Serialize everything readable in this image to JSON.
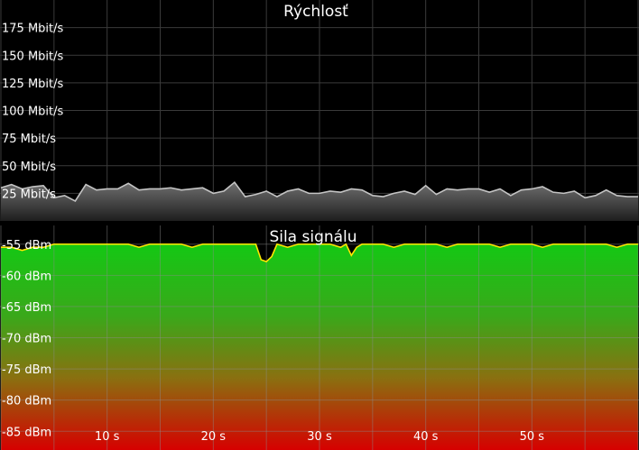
{
  "chart_data": [
    {
      "type": "area",
      "title": "Rýchlosť",
      "xlabel": "",
      "ylabel": "",
      "y_unit": "Mbit/s",
      "ylim": [
        0,
        200
      ],
      "y_ticks": [
        25,
        50,
        75,
        100,
        125,
        150,
        175
      ],
      "y_tick_labels": [
        "25 Mbit/s",
        "50 Mbit/s",
        "75 Mbit/s",
        "100 Mbit/s",
        "125 Mbit/s",
        "150 Mbit/s",
        "175 Mbit/s"
      ],
      "grid": true,
      "colors": {
        "background": "#000000",
        "grid": "#3a3a3a",
        "line": "#b8b8b8",
        "fill_top": "#6a6a6a",
        "fill_bottom": "#1a1a1a"
      },
      "series": [
        {
          "x": [
            0,
            1,
            2,
            3,
            4,
            5,
            6,
            7,
            8,
            9,
            10,
            11,
            12,
            13,
            14,
            15,
            16,
            17,
            18,
            19,
            20,
            21,
            22,
            23,
            24,
            25,
            26,
            27,
            28,
            29,
            30,
            31,
            32,
            33,
            34,
            35,
            36,
            37,
            38,
            39,
            40,
            41,
            42,
            43,
            44,
            45,
            46,
            47,
            48,
            49,
            50,
            51,
            52,
            53,
            54,
            55,
            56,
            57,
            58,
            59,
            60
          ],
          "values": [
            30,
            33,
            29,
            31,
            32,
            21,
            23,
            18,
            33,
            28,
            29,
            29,
            34,
            28,
            29,
            29,
            30,
            28,
            29,
            30,
            25,
            27,
            35,
            22,
            24,
            27,
            22,
            27,
            29,
            25,
            25,
            27,
            26,
            29,
            28,
            23,
            22,
            25,
            27,
            24,
            32,
            24,
            29,
            28,
            29,
            29,
            26,
            29,
            23,
            28,
            29,
            31,
            26,
            25,
            27,
            21,
            23,
            28,
            23,
            22,
            22
          ]
        }
      ]
    },
    {
      "type": "area",
      "title": "Sila signálu",
      "xlabel": "",
      "ylabel": "",
      "y_unit": "dBm",
      "ylim": [
        -88,
        -52
      ],
      "y_ticks": [
        -55,
        -60,
        -65,
        -70,
        -75,
        -80,
        -85
      ],
      "y_tick_labels": [
        "-55 dBm",
        "-60 dBm",
        "-65 dBm",
        "-70 dBm",
        "-75 dBm",
        "-80 dBm",
        "-85 dBm"
      ],
      "x_ticks": [
        10,
        20,
        30,
        40,
        50
      ],
      "x_tick_labels": [
        "10 s",
        "20 s",
        "30 s",
        "40 s",
        "50 s"
      ],
      "xlim": [
        0,
        60
      ],
      "grid": true,
      "colors": {
        "line": "#ffe600",
        "fill_top": "#17c417",
        "fill_bottom": "#d00000",
        "grid": "#5a5a5a"
      },
      "series": [
        {
          "x": [
            0,
            1,
            2,
            3,
            4,
            5,
            6,
            7,
            8,
            9,
            10,
            11,
            12,
            13,
            14,
            15,
            16,
            17,
            18,
            19,
            20,
            21,
            22,
            23,
            24,
            24.5,
            25,
            25.5,
            26,
            27,
            28,
            29,
            30,
            31,
            32,
            32.5,
            33,
            33.5,
            34,
            35,
            36,
            37,
            38,
            39,
            40,
            41,
            42,
            43,
            44,
            45,
            46,
            47,
            48,
            49,
            50,
            51,
            52,
            53,
            54,
            55,
            56,
            57,
            58,
            59,
            60
          ],
          "values": [
            -55.5,
            -55.5,
            -56,
            -55.5,
            -55.5,
            -55,
            -55,
            -55,
            -55,
            -55,
            -55,
            -55,
            -55,
            -55.5,
            -55,
            -55,
            -55,
            -55,
            -55.5,
            -55,
            -55,
            -55,
            -55,
            -55,
            -55,
            -57.5,
            -57.8,
            -57,
            -55,
            -55.5,
            -55,
            -55,
            -55,
            -55,
            -55.5,
            -55,
            -56.8,
            -55.5,
            -55,
            -55,
            -55,
            -55.5,
            -55,
            -55,
            -55,
            -55,
            -55.5,
            -55,
            -55,
            -55,
            -55,
            -55.5,
            -55,
            -55,
            -55,
            -55.5,
            -55,
            -55,
            -55,
            -55,
            -55,
            -55,
            -55.5,
            -55,
            -55
          ]
        }
      ]
    }
  ]
}
